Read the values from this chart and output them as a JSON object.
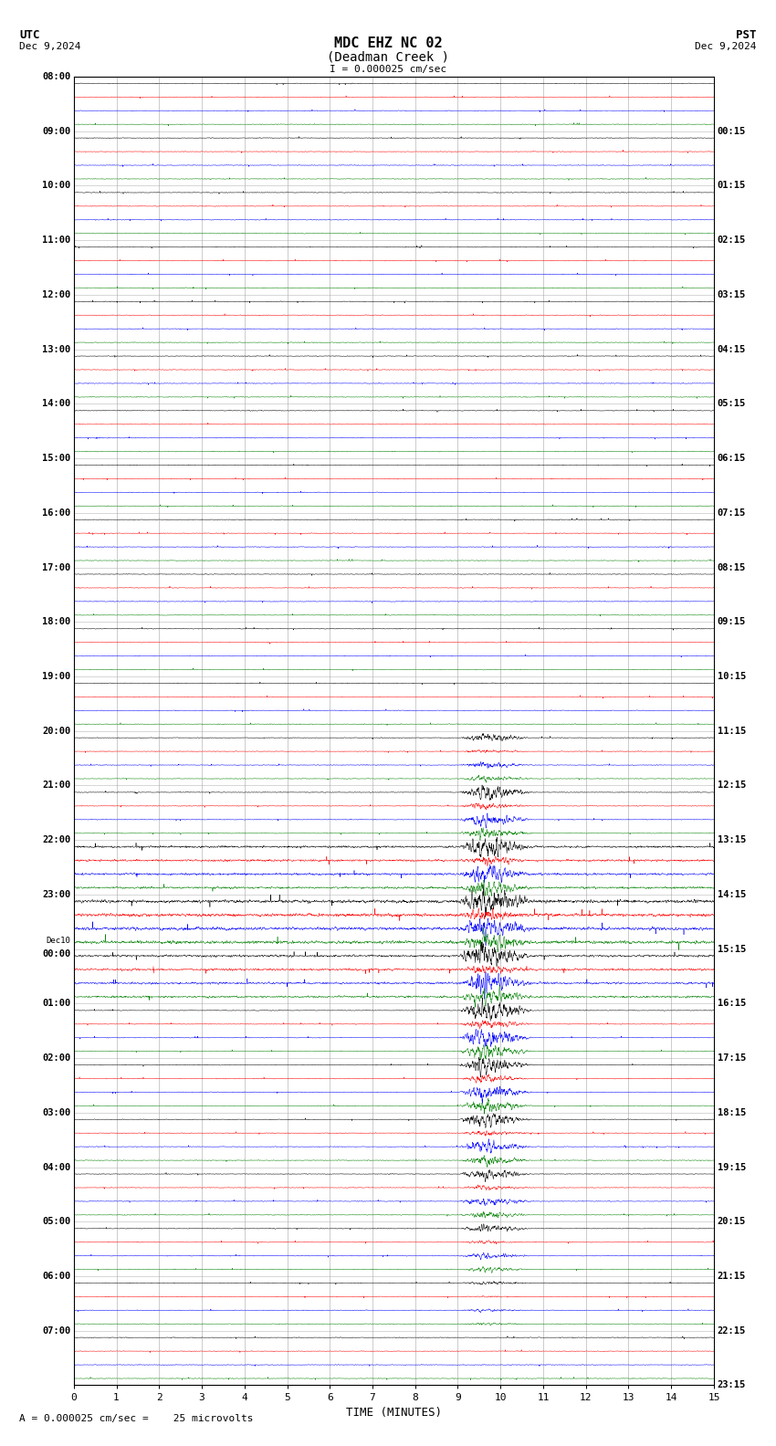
{
  "title_line1": "MDC EHZ NC 02",
  "title_line2": "(Deadman Creek )",
  "scale_text": "I = 0.000025 cm/sec",
  "utc_label": "UTC",
  "utc_date": "Dec 9,2024",
  "pst_label": "PST",
  "pst_date": "Dec 9,2024",
  "footer_scale": "= 0.000025 cm/sec =    25 microvolts",
  "xlabel": "TIME (MINUTES)",
  "bg_color": "#ffffff",
  "grid_color": "#999999",
  "colors": [
    "black",
    "red",
    "blue",
    "green"
  ],
  "n_rows": 24,
  "figwidth": 8.5,
  "figheight": 15.84,
  "dpi": 100,
  "left_labels": [
    "08:00",
    "09:00",
    "10:00",
    "11:00",
    "12:00",
    "13:00",
    "14:00",
    "15:00",
    "16:00",
    "17:00",
    "18:00",
    "19:00",
    "20:00",
    "21:00",
    "22:00",
    "23:00",
    "00:00",
    "01:00",
    "02:00",
    "03:00",
    "04:00",
    "05:00",
    "06:00",
    "07:00"
  ],
  "right_labels": [
    "00:15",
    "01:15",
    "02:15",
    "03:15",
    "04:15",
    "05:15",
    "06:15",
    "07:15",
    "08:15",
    "09:15",
    "10:15",
    "11:15",
    "12:15",
    "13:15",
    "14:15",
    "15:15",
    "16:15",
    "17:15",
    "18:15",
    "19:15",
    "20:15",
    "21:15",
    "22:15",
    "23:15"
  ],
  "dec10_row": 16
}
